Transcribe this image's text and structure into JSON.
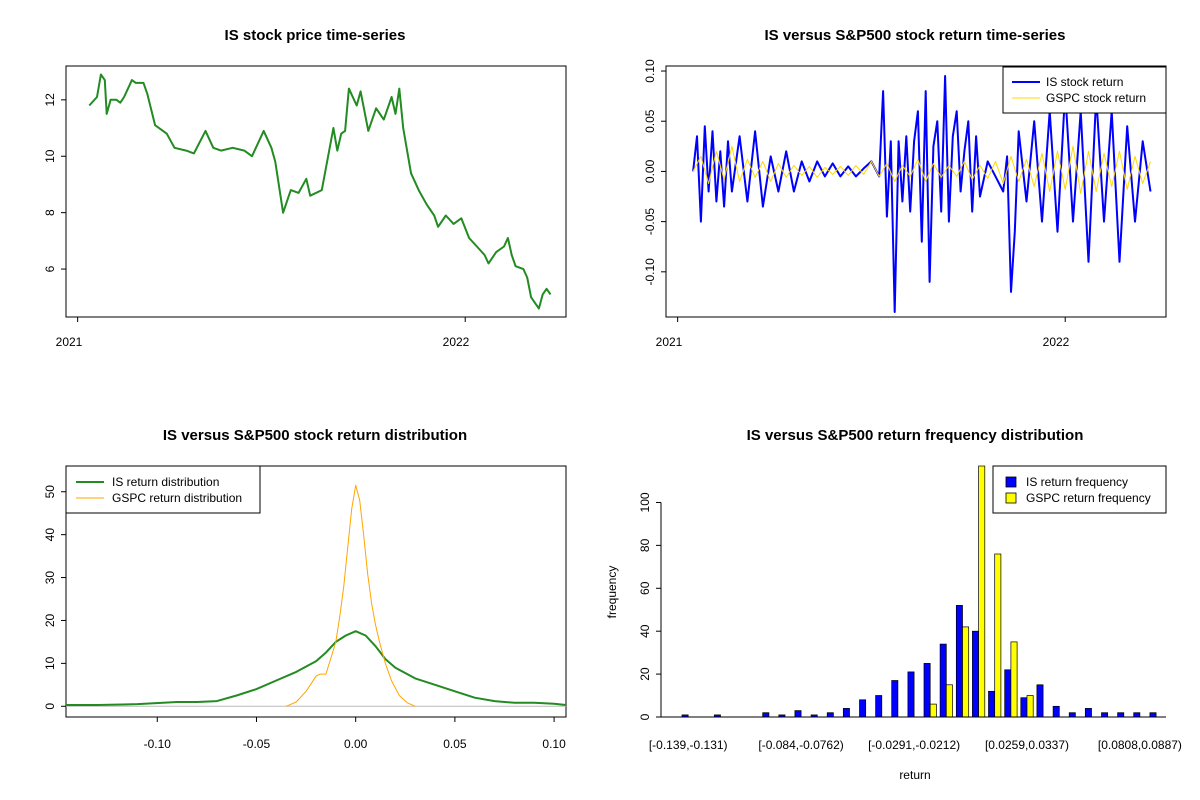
{
  "colors": {
    "is": "#228B22",
    "gspc_line": "#FFD700",
    "gspc_density": "#FFA500",
    "is_bar": "#0000FF",
    "gspc_bar": "#FFFF00",
    "return_blue": "#0000FF"
  },
  "chart_data": [
    {
      "type": "line",
      "title": "IS stock price time-series",
      "x_tick_labels": [
        "2021",
        "2022"
      ],
      "x_ticks": [
        2021.0,
        2022.0
      ],
      "xlim": [
        2020.97,
        2022.26
      ],
      "ylim": [
        4.3,
        13.2
      ],
      "y_ticks": [
        6,
        8,
        10,
        12
      ],
      "series": [
        {
          "color": "is",
          "x": [
            2021.03,
            2021.05,
            2021.06,
            2021.07,
            2021.075,
            2021.085,
            2021.1,
            2021.11,
            2021.12,
            2021.14,
            2021.15,
            2021.17,
            2021.18,
            2021.2,
            2021.23,
            2021.25,
            2021.28,
            2021.3,
            2021.33,
            2021.35,
            2021.37,
            2021.4,
            2021.43,
            2021.45,
            2021.48,
            2021.5,
            2021.51,
            2021.52,
            2021.53,
            2021.55,
            2021.57,
            2021.59,
            2021.6,
            2021.63,
            2021.66,
            2021.67,
            2021.68,
            2021.69,
            2021.7,
            2021.72,
            2021.73,
            2021.75,
            2021.77,
            2021.79,
            2021.81,
            2021.82,
            2021.83,
            2021.84,
            2021.86,
            2021.88,
            2021.9,
            2021.92,
            2021.93,
            2021.95,
            2021.97,
            2021.99,
            2022.01,
            2022.03,
            2022.05,
            2022.06,
            2022.08,
            2022.1,
            2022.11,
            2022.12,
            2022.13,
            2022.15,
            2022.16,
            2022.17,
            2022.18,
            2022.19,
            2022.2,
            2022.21,
            2022.22
          ],
          "y": [
            11.8,
            12.1,
            12.9,
            12.7,
            11.5,
            12.0,
            12.0,
            11.9,
            12.1,
            12.7,
            12.6,
            12.6,
            12.2,
            11.1,
            10.8,
            10.3,
            10.2,
            10.1,
            10.9,
            10.3,
            10.2,
            10.3,
            10.2,
            10.0,
            10.9,
            10.3,
            9.8,
            8.9,
            8.0,
            8.8,
            8.7,
            9.2,
            8.6,
            8.8,
            11.0,
            10.2,
            10.8,
            10.9,
            12.4,
            11.8,
            12.3,
            10.9,
            11.7,
            11.3,
            12.1,
            11.5,
            12.4,
            11.0,
            9.4,
            8.8,
            8.3,
            7.9,
            7.5,
            7.9,
            7.6,
            7.8,
            7.1,
            6.8,
            6.5,
            6.2,
            6.6,
            6.8,
            7.1,
            6.5,
            6.1,
            6.0,
            5.7,
            5.0,
            4.8,
            4.6,
            5.1,
            5.3,
            5.1
          ]
        }
      ]
    },
    {
      "type": "line",
      "title": "IS versus S&P500 stock return time-series",
      "x_tick_labels": [
        "2021",
        "2022"
      ],
      "x_ticks": [
        2021.0,
        2022.0
      ],
      "xlim": [
        2020.97,
        2022.26
      ],
      "y_tick_labels": [
        "-0.10",
        "-0.05",
        "0.00",
        "0.05",
        "0.10"
      ],
      "y_ticks": [
        -0.1,
        -0.05,
        0.0,
        0.05,
        0.1
      ],
      "ylim": [
        -0.145,
        0.105
      ],
      "legend": {
        "position": "top-right",
        "entries": [
          "IS stock return",
          "GSPC stock return"
        ]
      },
      "series": [
        {
          "name": "IS stock return",
          "color": "return_blue",
          "x": [
            2021.04,
            2021.05,
            2021.06,
            2021.07,
            2021.08,
            2021.09,
            2021.1,
            2021.11,
            2021.12,
            2021.13,
            2021.14,
            2021.16,
            2021.18,
            2021.2,
            2021.22,
            2021.24,
            2021.26,
            2021.28,
            2021.3,
            2021.32,
            2021.34,
            2021.36,
            2021.38,
            2021.4,
            2021.42,
            2021.44,
            2021.46,
            2021.48,
            2021.5,
            2021.52,
            2021.53,
            2021.54,
            2021.55,
            2021.56,
            2021.57,
            2021.58,
            2021.59,
            2021.6,
            2021.61,
            2021.62,
            2021.63,
            2021.64,
            2021.65,
            2021.66,
            2021.67,
            2021.68,
            2021.69,
            2021.7,
            2021.71,
            2021.72,
            2021.73,
            2021.74,
            2021.75,
            2021.76,
            2021.77,
            2021.78,
            2021.8,
            2021.82,
            2021.84,
            2021.85,
            2021.86,
            2021.87,
            2021.88,
            2021.9,
            2021.92,
            2021.94,
            2021.96,
            2021.98,
            2022.0,
            2022.02,
            2022.04,
            2022.06,
            2022.08,
            2022.1,
            2022.12,
            2022.14,
            2022.16,
            2022.18,
            2022.2,
            2022.22
          ],
          "y": [
            0.0,
            0.035,
            -0.05,
            0.045,
            -0.02,
            0.04,
            -0.03,
            0.02,
            -0.035,
            0.03,
            -0.02,
            0.035,
            -0.03,
            0.04,
            -0.035,
            0.015,
            -0.02,
            0.02,
            -0.02,
            0.01,
            -0.01,
            0.01,
            -0.005,
            0.008,
            -0.005,
            0.005,
            -0.005,
            0.003,
            0.01,
            -0.005,
            0.08,
            -0.045,
            0.03,
            -0.14,
            0.03,
            -0.03,
            0.035,
            -0.04,
            0.03,
            0.06,
            -0.07,
            0.08,
            -0.11,
            0.025,
            0.05,
            -0.04,
            0.095,
            -0.05,
            0.035,
            0.06,
            -0.02,
            0.02,
            0.05,
            -0.04,
            0.035,
            -0.025,
            0.01,
            -0.005,
            -0.02,
            0.015,
            -0.12,
            -0.06,
            0.04,
            -0.03,
            0.05,
            -0.05,
            0.06,
            -0.06,
            0.08,
            -0.05,
            0.06,
            -0.09,
            0.075,
            -0.05,
            0.06,
            -0.09,
            0.045,
            -0.05,
            0.03,
            -0.02
          ]
        },
        {
          "name": "GSPC stock return",
          "color": "gspc_line",
          "x": [
            2021.04,
            2021.06,
            2021.08,
            2021.1,
            2021.12,
            2021.14,
            2021.16,
            2021.18,
            2021.2,
            2021.22,
            2021.24,
            2021.26,
            2021.28,
            2021.3,
            2021.32,
            2021.34,
            2021.36,
            2021.38,
            2021.4,
            2021.42,
            2021.44,
            2021.46,
            2021.48,
            2021.5,
            2021.52,
            2021.54,
            2021.56,
            2021.58,
            2021.6,
            2021.62,
            2021.64,
            2021.66,
            2021.68,
            2021.7,
            2021.72,
            2021.74,
            2021.76,
            2021.78,
            2021.8,
            2021.82,
            2021.84,
            2021.86,
            2021.88,
            2021.9,
            2021.92,
            2021.94,
            2021.96,
            2021.98,
            2022.0,
            2022.02,
            2022.04,
            2022.06,
            2022.08,
            2022.1,
            2022.12,
            2022.14,
            2022.16,
            2022.18,
            2022.2,
            2022.22
          ],
          "y": [
            0.0,
            0.015,
            -0.012,
            0.02,
            -0.008,
            0.025,
            -0.01,
            0.012,
            -0.006,
            0.01,
            -0.01,
            0.008,
            -0.006,
            0.006,
            -0.004,
            0.005,
            -0.006,
            0.004,
            -0.003,
            0.005,
            -0.004,
            0.006,
            -0.003,
            0.01,
            -0.005,
            0.008,
            -0.01,
            0.006,
            -0.005,
            0.012,
            -0.01,
            0.008,
            -0.006,
            0.006,
            -0.005,
            0.01,
            -0.008,
            0.006,
            -0.007,
            0.01,
            -0.012,
            0.015,
            -0.01,
            0.012,
            -0.015,
            0.018,
            -0.02,
            0.02,
            -0.018,
            0.025,
            -0.022,
            0.02,
            -0.02,
            0.018,
            -0.015,
            0.02,
            -0.018,
            0.015,
            -0.012,
            0.01
          ]
        }
      ]
    },
    {
      "type": "line",
      "title": "IS versus S&P500 stock return distribution",
      "x_tick_labels": [
        "-0.10",
        "-0.05",
        "0.00",
        "0.05",
        "0.10"
      ],
      "x_ticks": [
        -0.1,
        -0.05,
        0.0,
        0.05,
        0.1
      ],
      "xlim": [
        -0.146,
        0.106
      ],
      "y_ticks": [
        0,
        10,
        20,
        30,
        40,
        50
      ],
      "ylim": [
        -2.5,
        56
      ],
      "legend": {
        "position": "top-left",
        "entries": [
          "IS return distribution",
          "GSPC return distribution"
        ]
      },
      "series": [
        {
          "name": "IS return distribution",
          "color": "is",
          "x": [
            -0.146,
            -0.13,
            -0.11,
            -0.09,
            -0.08,
            -0.07,
            -0.06,
            -0.05,
            -0.04,
            -0.03,
            -0.02,
            -0.015,
            -0.01,
            -0.005,
            0.0,
            0.005,
            0.01,
            0.015,
            0.02,
            0.03,
            0.04,
            0.05,
            0.06,
            0.07,
            0.08,
            0.09,
            0.1,
            0.106
          ],
          "y": [
            0.3,
            0.3,
            0.5,
            1.0,
            1.0,
            1.2,
            2.5,
            4.0,
            6.0,
            8.0,
            10.5,
            12.5,
            15.0,
            16.5,
            17.5,
            16.5,
            14.0,
            11.0,
            9.0,
            6.5,
            5.0,
            3.5,
            2.0,
            1.2,
            0.8,
            0.8,
            0.6,
            0.3
          ]
        },
        {
          "name": "GSPC return distribution",
          "color": "gspc_density",
          "x": [
            -0.035,
            -0.03,
            -0.025,
            -0.02,
            -0.018,
            -0.015,
            -0.012,
            -0.01,
            -0.008,
            -0.006,
            -0.004,
            -0.002,
            0.0,
            0.002,
            0.004,
            0.006,
            0.008,
            0.01,
            0.012,
            0.015,
            0.018,
            0.022,
            0.026,
            0.03
          ],
          "y": [
            0.0,
            1.0,
            3.5,
            7.0,
            7.5,
            7.5,
            12.0,
            15.0,
            21.0,
            28.0,
            37.0,
            46.0,
            51.5,
            48.0,
            40.0,
            31.0,
            24.0,
            19.0,
            15.0,
            10.0,
            6.0,
            2.5,
            0.8,
            0.0
          ]
        }
      ]
    },
    {
      "type": "bar",
      "title": "IS versus S&P500 return frequency distribution",
      "xlabel": "return",
      "ylabel": "frequency",
      "y_ticks": [
        0,
        20,
        40,
        60,
        80,
        100
      ],
      "ylim": [
        0,
        117
      ],
      "x_tick_labels": [
        "[-0.139,-0.131)",
        "[-0.084,-0.0762)",
        "[-0.0291,-0.0212)",
        "[0.0259,0.0337)",
        "[0.0808,0.0887)"
      ],
      "x_tick_category_index": [
        0,
        7,
        14,
        21,
        28
      ],
      "legend": {
        "position": "top-right",
        "entries": [
          "IS return frequency",
          "GSPC return frequency"
        ]
      },
      "series": [
        {
          "name": "IS return frequency",
          "color": "is_bar",
          "values": [
            1,
            0,
            1,
            0,
            0,
            2,
            1,
            3,
            1,
            2,
            4,
            8,
            10,
            17,
            21,
            25,
            34,
            52,
            40,
            12,
            22,
            9,
            15,
            5,
            2,
            4,
            2,
            2,
            2,
            2
          ]
        },
        {
          "name": "GSPC return frequency",
          "color": "gspc_bar",
          "values": [
            0,
            0,
            0,
            0,
            0,
            0,
            0,
            0,
            0,
            0,
            0,
            0,
            0,
            0,
            0,
            6,
            15,
            42,
            117,
            76,
            35,
            10,
            0,
            0,
            0,
            0,
            0,
            0,
            0,
            0
          ]
        }
      ]
    }
  ]
}
